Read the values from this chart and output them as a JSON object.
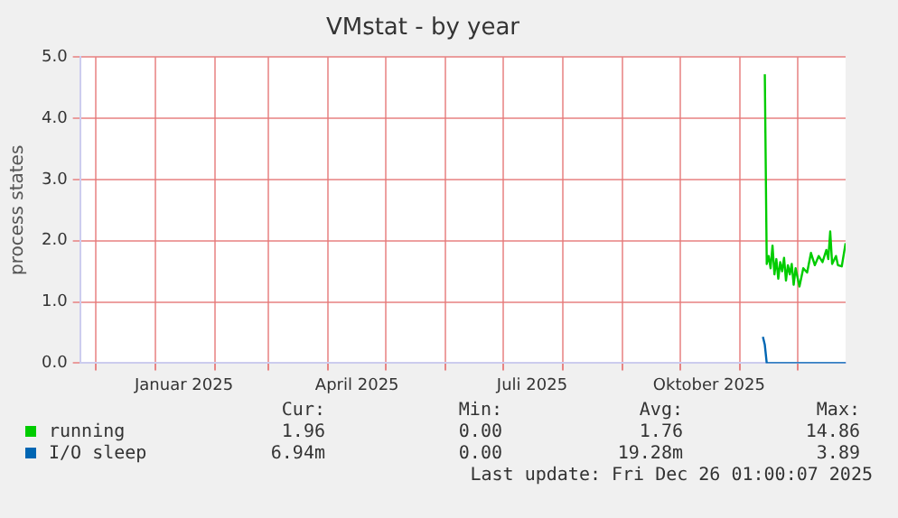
{
  "chart_data": {
    "type": "line",
    "title": "VMstat - by year",
    "ylabel": "process states",
    "xlim": [
      "2024-11-23",
      "2025-12-26"
    ],
    "xticks": [
      {
        "value": "2024-12-01",
        "label": null
      },
      {
        "value": "2025-01-01",
        "label": null
      },
      {
        "value": "2025-01-16",
        "label": "Januar 2025"
      },
      {
        "value": "2025-02-01",
        "label": null
      },
      {
        "value": "2025-03-01",
        "label": null
      },
      {
        "value": "2025-04-01",
        "label": null
      },
      {
        "value": "2025-04-16",
        "label": "April 2025"
      },
      {
        "value": "2025-05-01",
        "label": null
      },
      {
        "value": "2025-06-01",
        "label": null
      },
      {
        "value": "2025-07-01",
        "label": null
      },
      {
        "value": "2025-07-16",
        "label": "Juli 2025"
      },
      {
        "value": "2025-08-01",
        "label": null
      },
      {
        "value": "2025-09-01",
        "label": null
      },
      {
        "value": "2025-10-01",
        "label": null
      },
      {
        "value": "2025-10-16",
        "label": "Oktober 2025"
      },
      {
        "value": "2025-11-01",
        "label": null
      },
      {
        "value": "2025-12-01",
        "label": null
      }
    ],
    "ylim": [
      0,
      5
    ],
    "yticks": [
      {
        "value": 0,
        "label": "0.0"
      },
      {
        "value": 1,
        "label": "1.0"
      },
      {
        "value": 2,
        "label": "2.0"
      },
      {
        "value": 3,
        "label": "3.0"
      },
      {
        "value": 4,
        "label": "4.0"
      },
      {
        "value": 5,
        "label": "5.0"
      }
    ],
    "grid": true,
    "legend": "bottom",
    "marker": "none",
    "line_style": "solid",
    "series": [
      {
        "name": "running",
        "color": "#00cc00",
        "x": [
          "2025-11-14",
          "2025-11-15",
          "2025-11-16",
          "2025-11-17",
          "2025-11-18",
          "2025-11-19",
          "2025-11-20",
          "2025-11-21",
          "2025-11-22",
          "2025-11-23",
          "2025-11-24",
          "2025-11-25",
          "2025-11-26",
          "2025-11-27",
          "2025-11-28",
          "2025-11-29",
          "2025-11-30",
          "2025-12-02",
          "2025-12-04",
          "2025-12-06",
          "2025-12-08",
          "2025-12-10",
          "2025-12-12",
          "2025-12-14",
          "2025-12-16",
          "2025-12-17",
          "2025-12-18",
          "2025-12-19",
          "2025-12-21",
          "2025-12-22",
          "2025-12-24",
          "2025-12-26"
        ],
        "values": [
          4.72,
          1.62,
          1.75,
          1.55,
          1.92,
          1.45,
          1.7,
          1.38,
          1.65,
          1.5,
          1.72,
          1.35,
          1.6,
          1.45,
          1.62,
          1.28,
          1.55,
          1.25,
          1.55,
          1.48,
          1.8,
          1.6,
          1.75,
          1.65,
          1.85,
          1.7,
          2.15,
          1.62,
          1.75,
          1.6,
          1.58,
          1.96
        ]
      },
      {
        "name": "I/O sleep",
        "color": "#0066b3",
        "x": [
          "2025-11-13",
          "2025-11-14",
          "2025-11-15",
          "2025-12-26"
        ],
        "values": [
          0.43,
          0.3,
          0,
          0
        ]
      }
    ],
    "annotations": [
      "Cur:",
      "Min:",
      "Avg:",
      "Max:",
      "1.96",
      "0.00",
      "1.76",
      "14.86",
      "6.94m",
      "0.00",
      "19.28m",
      "3.89",
      "Last update: Fri Dec 26 01:00:07 2025"
    ]
  }
}
